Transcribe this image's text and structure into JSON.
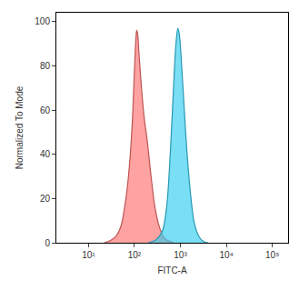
{
  "chart_data": {
    "type": "area",
    "x_label": "FITC-A",
    "y_label": "Normalized To Mode",
    "log": "x",
    "grid": false,
    "xlim": [
      2,
      220000
    ],
    "xticks": [
      {
        "value": 10,
        "label": "10¹"
      },
      {
        "value": 100,
        "label": "10²"
      },
      {
        "value": 1000,
        "label": "10³"
      },
      {
        "value": 10000,
        "label": "10⁴"
      },
      {
        "value": 100000,
        "label": "10⁵"
      }
    ],
    "ylim": [
      0,
      104
    ],
    "yticks": [
      0,
      20,
      40,
      60,
      80,
      100
    ],
    "series": [
      {
        "color": "#ff7070",
        "x": [
          22,
          30,
          40,
          50,
          60,
          70,
          80,
          90,
          100,
          108,
          112,
          118,
          125,
          140,
          160,
          190,
          230,
          280,
          350,
          450,
          600,
          700
        ],
        "values": [
          0,
          1,
          3,
          7,
          15,
          25,
          38,
          55,
          78,
          93,
          96,
          94,
          86,
          72,
          58,
          46,
          30,
          16,
          7,
          2,
          0.5,
          0
        ]
      },
      {
        "color": "#33ccee",
        "x": [
          200,
          300,
          400,
          500,
          600,
          700,
          800,
          880,
          950,
          1050,
          1200,
          1400,
          1700,
          2000,
          2500,
          3200,
          4000
        ],
        "values": [
          0,
          1.5,
          5,
          16,
          40,
          68,
          90,
          97,
          94,
          82,
          62,
          40,
          20,
          9,
          3,
          0.5,
          0
        ]
      }
    ]
  }
}
